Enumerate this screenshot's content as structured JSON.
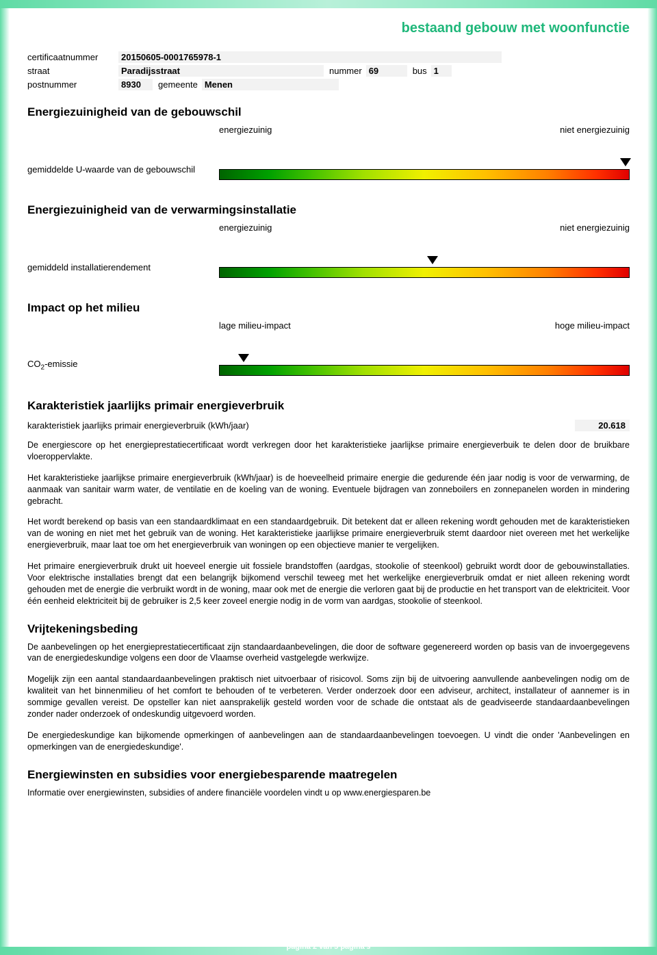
{
  "doc_title": "bestaand gebouw met woonfunctie",
  "meta": {
    "cert_label": "certificaatnummer",
    "cert_val": "20150605-0001765978-1",
    "street_label": "straat",
    "street_val": "Paradijsstraat",
    "number_label": "nummer",
    "number_val": "69",
    "bus_label": "bus",
    "bus_val": "1",
    "post_label": "postnummer",
    "post_val": "8930",
    "gemeente_label": "gemeente",
    "gemeente_val": "Menen"
  },
  "sections": {
    "s1": {
      "title": "Energiezuinigheid van de gebouwschil",
      "left_label": "energiezuinig",
      "right_label": "niet energiezuinig",
      "row_label": "gemiddelde U-waarde van de gebouwschil",
      "arrow_pct": 99
    },
    "s2": {
      "title": "Energiezuinigheid van de verwarmingsinstallatie",
      "left_label": "energiezuinig",
      "right_label": "niet energiezuinig",
      "row_label": "gemiddeld installatierendement",
      "arrow_pct": 52
    },
    "s3": {
      "title": "Impact op het milieu",
      "left_label": "lage milieu-impact",
      "right_label": "hoge milieu-impact",
      "row_label_html": "CO2-emissie",
      "arrow_pct": 6
    },
    "s4": {
      "title": "Karakteristiek jaarlijks primair energieverbruik",
      "kwh_label": "karakteristiek jaarlijks primair energieverbruik (kWh/jaar)",
      "kwh_val": "20.618",
      "p1": "De energiescore op het energieprestatiecertificaat wordt verkregen door het karakteristieke jaarlijkse primaire energieverbuik te delen door de bruikbare vloeroppervlakte.",
      "p2": "Het karakteristieke jaarlijkse primaire energieverbruik (kWh/jaar) is de hoeveelheid primaire energie die gedurende één jaar nodig is voor de verwarming, de aanmaak van sanitair warm water, de ventilatie en de koeling van de woning. Eventuele bijdragen van zonneboilers en zonnepanelen worden in mindering gebracht.",
      "p3": "Het wordt berekend op basis van een standaardklimaat en een standaardgebruik. Dit betekent dat er alleen rekening wordt gehouden met de karakteristieken van de woning en niet met het gebruik van de woning. Het karakteristieke jaarlijkse primaire energieverbruik stemt daardoor niet overeen met het werkelijke energieverbruik, maar laat toe om het energieverbruik van woningen op een objectieve manier te vergelijken.",
      "p4": "Het primaire energieverbruik drukt uit hoeveel energie uit fossiele brandstoffen (aardgas, stookolie of steenkool) gebruikt wordt door de gebouwinstallaties. Voor elektrische installaties brengt dat een belangrijk bijkomend verschil teweeg met het werkelijke energieverbruik omdat er niet alleen rekening wordt gehouden met de energie die verbruikt wordt in de woning, maar ook met de energie die verloren gaat bij de productie en het transport van de elektriciteit. Voor één eenheid elektriciteit bij de gebruiker is 2,5 keer zoveel energie nodig in de vorm van aardgas, stookolie of steenkool."
    },
    "s5": {
      "title": "Vrijtekeningsbeding",
      "p1": "De aanbevelingen op het energieprestatiecertificaat zijn standaardaanbevelingen, die door de software gegenereerd worden op basis van de invoergegevens van de energiedeskundige volgens een door de Vlaamse overheid vastgelegde werkwijze.",
      "p2": "Mogelijk zijn een aantal standaardaanbevelingen praktisch niet uitvoerbaar of risicovol. Soms zijn bij de uitvoering aanvullende aanbevelingen nodig om de kwaliteit van het binnenmilieu of het comfort te behouden of te verbeteren. Verder onderzoek door een adviseur, architect, installateur of aannemer is in sommige gevallen vereist. De opsteller kan niet aansprakelijk gesteld worden voor de schade die ontstaat als de geadviseerde standaardaanbevelingen zonder nader onderzoek of ondeskundig uitgevoerd worden.",
      "p3": "De energiedeskundige kan bijkomende opmerkingen of aanbevelingen aan de standaardaanbevelingen toevoegen. U vindt die onder 'Aanbevelingen en opmerkingen van de energiedeskundige'."
    },
    "s6": {
      "title": "Energiewinsten en subsidies voor energiebesparende maatregelen",
      "p1": "Informatie over energiewinsten, subsidies of andere financiële voordelen vindt u op www.energiesparen.be"
    }
  },
  "footer": "pagina 2 van 5 pagina's"
}
